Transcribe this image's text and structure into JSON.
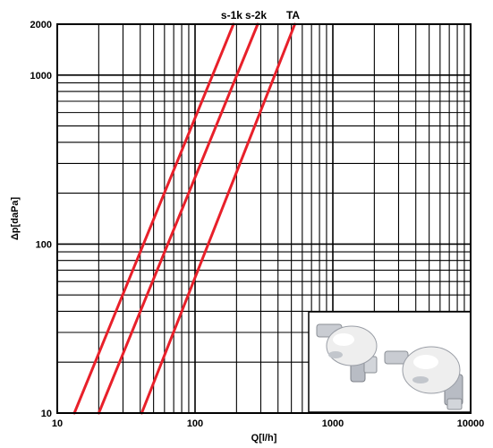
{
  "chart_data": {
    "type": "line",
    "title": "",
    "xlabel": "Q[l/h]",
    "ylabel": "Δp[daPa]",
    "x_scale": "log",
    "y_scale": "log",
    "xlim": [
      10,
      10000
    ],
    "ylim": [
      10,
      2000
    ],
    "x_ticks": [
      {
        "value": 10,
        "label": "10"
      },
      {
        "value": 100,
        "label": "100"
      },
      {
        "value": 1000,
        "label": "1000"
      },
      {
        "value": 10000,
        "label": "10000"
      }
    ],
    "y_ticks": [
      {
        "value": 10,
        "label": "10"
      },
      {
        "value": 100,
        "label": "100"
      },
      {
        "value": 1000,
        "label": "1000"
      },
      {
        "value": 2000,
        "label": "2000"
      }
    ],
    "grid": true,
    "line_color": "#e8202a",
    "series": [
      {
        "name": "s-1k",
        "x": [
          13.3,
          190
        ],
        "y": [
          10,
          2000
        ]
      },
      {
        "name": "s-2k",
        "x": [
          20,
          285
        ],
        "y": [
          10,
          2000
        ]
      },
      {
        "name": "TA",
        "x": [
          41,
          530
        ],
        "y": [
          10,
          2000
        ]
      }
    ],
    "inset_image": {
      "description_icon": "radiator-valve-product-photo-icon"
    }
  }
}
